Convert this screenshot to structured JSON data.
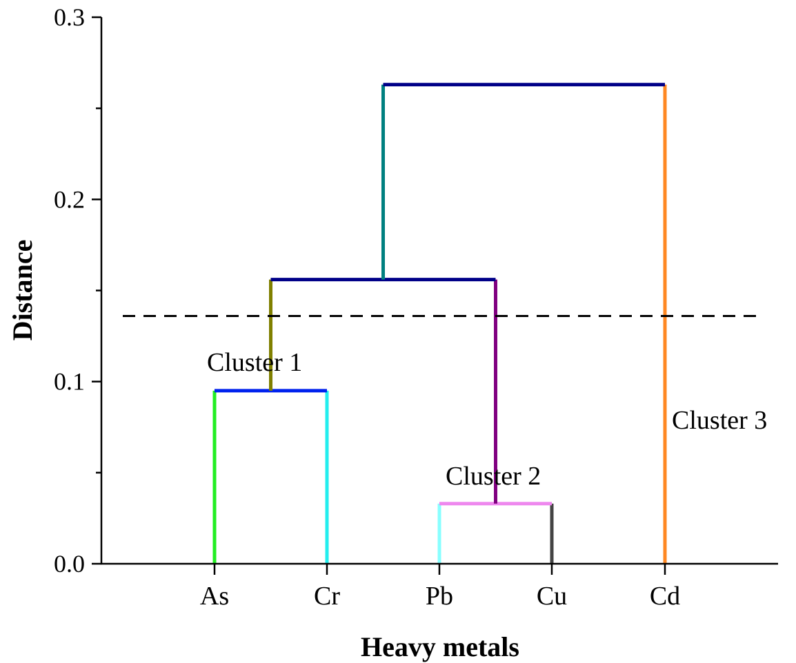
{
  "chart_data": {
    "type": "dendrogram",
    "xlabel": "Heavy metals",
    "ylabel": "Distance",
    "ylim": [
      0,
      0.3
    ],
    "yticks": [
      {
        "value": 0.0,
        "label": "0.0"
      },
      {
        "value": 0.1,
        "label": "0.1"
      },
      {
        "value": 0.2,
        "label": "0.2"
      },
      {
        "value": 0.3,
        "label": "0.3"
      }
    ],
    "y_minor_ticks": [
      0.05,
      0.15,
      0.25
    ],
    "leaves": [
      {
        "label": "As",
        "color": "#22ee22"
      },
      {
        "label": "Cr",
        "color": "#22eeee"
      },
      {
        "label": "Pb",
        "color": "#88ffff"
      },
      {
        "label": "Cu",
        "color": "#444444"
      },
      {
        "label": "Cd",
        "color": "#ff8822"
      }
    ],
    "merges": [
      {
        "children": [
          "As",
          "Cr"
        ],
        "height": 0.095,
        "color": "#0022ee"
      },
      {
        "children": [
          "Pb",
          "Cu"
        ],
        "height": 0.033,
        "color": "#ee88ee"
      },
      {
        "children": [
          "As-Cr",
          "Pb-Cu"
        ],
        "height": 0.156,
        "color": "#000088",
        "left_stem_color": "#808000",
        "right_stem_color": "#800080"
      },
      {
        "children": [
          "As-Cr-Pb-Cu",
          "Cd"
        ],
        "height": 0.263,
        "color": "#000088",
        "left_stem_color": "#008080",
        "right_stem_color": "#ff8822"
      }
    ],
    "cut_line": {
      "value": 0.136,
      "style": "dashed"
    },
    "annotations": [
      {
        "text": "Cluster 1"
      },
      {
        "text": "Cluster 2"
      },
      {
        "text": "Cluster 3"
      }
    ]
  }
}
